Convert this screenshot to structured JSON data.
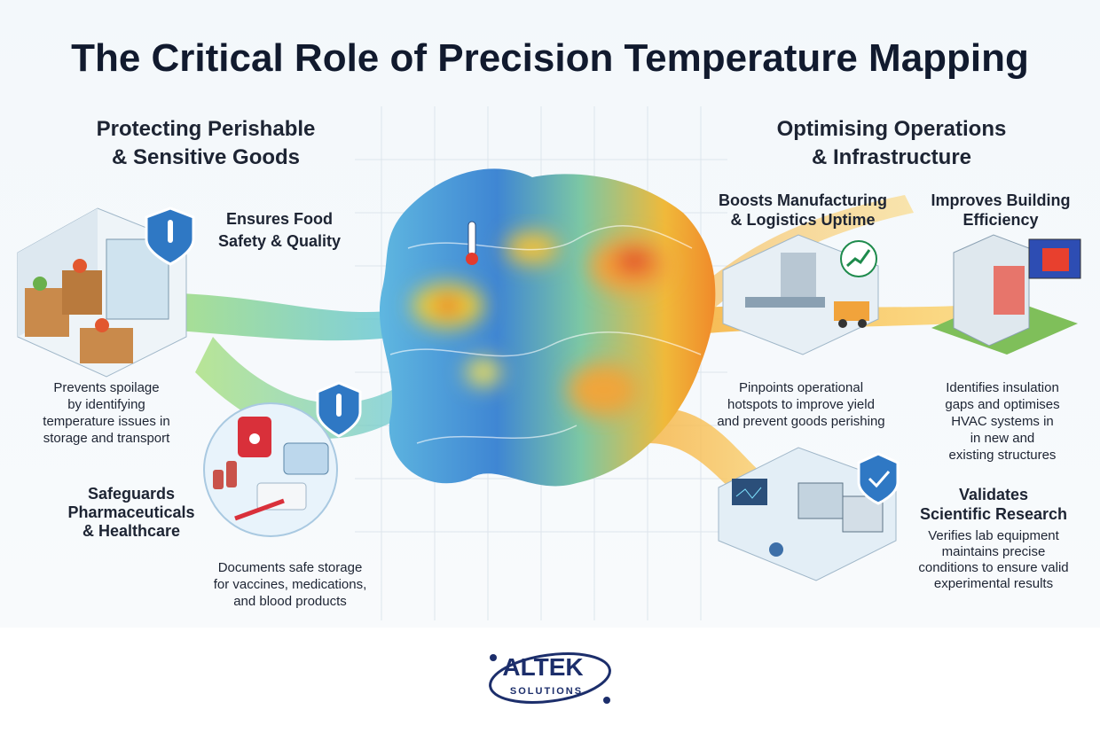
{
  "title": "The Critical Role of Precision Temperature Mapping",
  "left": {
    "heading": [
      "Protecting Perishable",
      "& Sensitive Goods"
    ],
    "food": {
      "title": [
        "Ensures Food",
        "Safety & Quality"
      ],
      "description": [
        "Prevents spoilage",
        "by identifying",
        "temperature issues in",
        "storage and transport"
      ]
    },
    "pharma": {
      "title": [
        "Safeguards",
        "Pharmaceuticals",
        "& Healthcare"
      ],
      "description": [
        "Documents safe storage",
        "for vaccines, medications,",
        "and blood products"
      ]
    }
  },
  "right": {
    "heading": [
      "Optimising Operations",
      "& Infrastructure"
    ],
    "manufacturing": {
      "title": [
        "Boosts Manufacturing",
        "& Logistics Uptime"
      ],
      "description": [
        "Pinpoints operational",
        "hotspots to improve yield",
        "and prevent goods perishing"
      ]
    },
    "building": {
      "title": [
        "Improves Building",
        "Efficiency"
      ],
      "description": [
        "Identifies insulation",
        "gaps and optimises",
        "HVAC systems in",
        "in new and",
        "existing structures"
      ]
    },
    "research": {
      "title": [
        "Validates",
        "Scientific Research"
      ],
      "description": [
        "Verifies lab equipment",
        "maintains precise",
        "conditions to ensure valid",
        "experimental results"
      ]
    }
  },
  "logo": {
    "name": "ALTEK",
    "tagline": "SOLUTIONS"
  }
}
